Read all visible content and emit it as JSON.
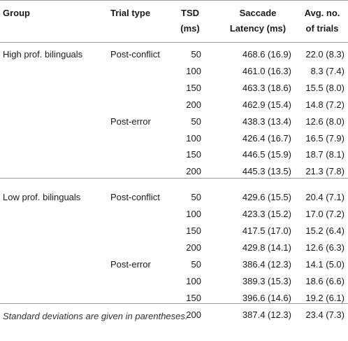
{
  "table": {
    "headers": {
      "group": "Group",
      "trial_type": "Trial type",
      "tsd_line1": "TSD",
      "tsd_line2": "(ms)",
      "latency_line1": "Saccade",
      "latency_line2": "Latency (ms)",
      "avg_line1": "Avg. no.",
      "avg_line2": "of trials"
    },
    "rows": [
      {
        "group": "High prof. bilinguals",
        "trial": "Post-conflict",
        "tsd": "50",
        "latency": "468.6 (16.9)",
        "avg": "22.0 (8.3)"
      },
      {
        "group": "",
        "trial": "",
        "tsd": "100",
        "latency": "461.0 (16.3)",
        "avg": "8.3 (7.4)"
      },
      {
        "group": "",
        "trial": "",
        "tsd": "150",
        "latency": "463.3 (18.6)",
        "avg": "15.5 (8.0)"
      },
      {
        "group": "",
        "trial": "",
        "tsd": "200",
        "latency": "462.9 (15.4)",
        "avg": "14.8 (7.2)"
      },
      {
        "group": "",
        "trial": "Post-error",
        "tsd": "50",
        "latency": "438.3 (13.4)",
        "avg": "12.6 (8.0)"
      },
      {
        "group": "",
        "trial": "",
        "tsd": "100",
        "latency": "426.4 (16.7)",
        "avg": "16.5 (7.9)"
      },
      {
        "group": "",
        "trial": "",
        "tsd": "150",
        "latency": "446.5 (15.9)",
        "avg": "18.7 (8.1)"
      },
      {
        "group": "",
        "trial": "",
        "tsd": "200",
        "latency": "445.3 (13.5)",
        "avg": "21.3 (7.8)"
      },
      {
        "group": "Low prof. bilinguals",
        "trial": "Post-conflict",
        "tsd": "50",
        "latency": "429.6 (15.5)",
        "avg": "20.4 (7.1)"
      },
      {
        "group": "",
        "trial": "",
        "tsd": "100",
        "latency": "423.3 (15.2)",
        "avg": "17.0 (7.2)"
      },
      {
        "group": "",
        "trial": "",
        "tsd": "150",
        "latency": "417.5 (17.0)",
        "avg": "15.2 (6.4)"
      },
      {
        "group": "",
        "trial": "",
        "tsd": "200",
        "latency": "429.8 (14.1)",
        "avg": "12.6 (6.3)"
      },
      {
        "group": "",
        "trial": "Post-error",
        "tsd": "50",
        "latency": "386.4 (12.3)",
        "avg": "14.1 (5.0)"
      },
      {
        "group": "",
        "trial": "",
        "tsd": "100",
        "latency": "389.3 (15.3)",
        "avg": "18.6 (6.6)"
      },
      {
        "group": "",
        "trial": "",
        "tsd": "150",
        "latency": "396.6 (14.6)",
        "avg": "19.2 (6.1)"
      },
      {
        "group": "",
        "trial": "",
        "tsd": "200",
        "latency": "387.4 (12.3)",
        "avg": "23.4 (7.3)"
      }
    ]
  },
  "footnote": "Standard deviations are given in parentheses."
}
